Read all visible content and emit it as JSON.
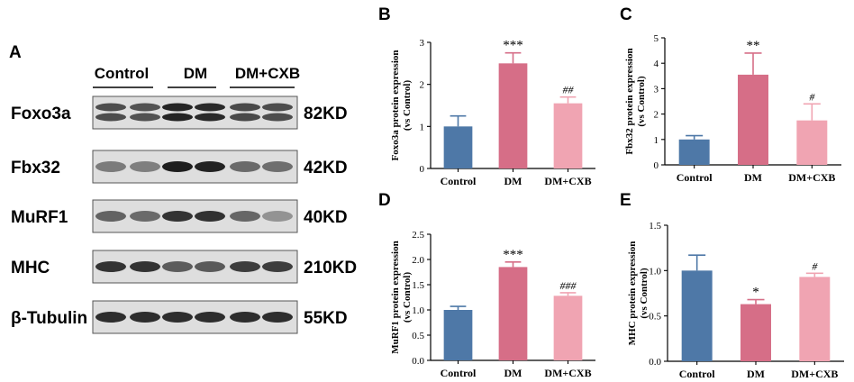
{
  "blot": {
    "panel_letter": "A",
    "groups": [
      "Control",
      "DM",
      "DM+CXB"
    ],
    "rows": [
      {
        "protein": "Foxo3a",
        "kd": "82KD",
        "intensity": [
          0.72,
          0.7,
          0.92,
          0.9,
          0.74,
          0.72
        ],
        "double": true
      },
      {
        "protein": "Fbx32",
        "kd": "42KD",
        "intensity": [
          0.5,
          0.48,
          0.95,
          0.93,
          0.58,
          0.56
        ],
        "double": false
      },
      {
        "protein": "MuRF1",
        "kd": "40KD",
        "intensity": [
          0.62,
          0.58,
          0.85,
          0.86,
          0.6,
          0.38
        ],
        "double": false
      },
      {
        "protein": "MHC",
        "kd": "210KD",
        "intensity": [
          0.85,
          0.85,
          0.65,
          0.66,
          0.8,
          0.8
        ],
        "double": false
      },
      {
        "protein": "β-Tubulin",
        "kd": "55KD",
        "intensity": [
          0.88,
          0.88,
          0.88,
          0.88,
          0.88,
          0.88
        ],
        "double": false
      }
    ]
  },
  "chart_data": [
    {
      "panel": "B",
      "type": "bar",
      "categories": [
        "Control",
        "DM",
        "DM+CXB"
      ],
      "values": [
        1.0,
        2.5,
        1.55
      ],
      "errors": [
        0.25,
        0.25,
        0.15
      ],
      "significance": [
        "",
        "***",
        "##"
      ],
      "ylabel_lines": [
        "Foxo3a protein expression",
        "(vs Control)"
      ],
      "ylim": [
        0,
        3
      ],
      "yticks": [
        0,
        1,
        2,
        3
      ],
      "colors": [
        "#4e78a7",
        "#d66e87",
        "#f0a4b2"
      ]
    },
    {
      "panel": "C",
      "type": "bar",
      "categories": [
        "Control",
        "DM",
        "DM+CXB"
      ],
      "values": [
        1.0,
        3.55,
        1.75
      ],
      "errors": [
        0.15,
        0.85,
        0.65
      ],
      "significance": [
        "",
        "**",
        "#"
      ],
      "ylabel_lines": [
        "Fbx32 protein expression",
        "(vs Control)"
      ],
      "ylim": [
        0,
        5
      ],
      "yticks": [
        0,
        1,
        2,
        3,
        4,
        5
      ],
      "colors": [
        "#4e78a7",
        "#d66e87",
        "#f0a4b2"
      ]
    },
    {
      "panel": "D",
      "type": "bar",
      "categories": [
        "Control",
        "DM",
        "DM+CXB"
      ],
      "values": [
        1.0,
        1.85,
        1.28
      ],
      "errors": [
        0.07,
        0.1,
        0.06
      ],
      "significance": [
        "",
        "***",
        "###"
      ],
      "ylabel_lines": [
        "MuRF1 protein expression",
        "(vs Control)"
      ],
      "ylim": [
        0,
        2.5
      ],
      "yticks": [
        "0.0",
        "0.5",
        "1.0",
        "1.5",
        "2.0",
        "2.5"
      ],
      "colors": [
        "#4e78a7",
        "#d66e87",
        "#f0a4b2"
      ]
    },
    {
      "panel": "E",
      "type": "bar",
      "categories": [
        "Control",
        "DM",
        "DM+CXB"
      ],
      "values": [
        1.0,
        0.63,
        0.93
      ],
      "errors": [
        0.17,
        0.05,
        0.04
      ],
      "significance": [
        "",
        "*",
        "#"
      ],
      "ylabel_lines": [
        "MHC protein expression",
        "(vs Control)"
      ],
      "ylim": [
        0,
        1.5
      ],
      "yticks": [
        "0.0",
        "0.5",
        "1.0",
        "1.5"
      ],
      "colors": [
        "#4e78a7",
        "#d66e87",
        "#f0a4b2"
      ]
    }
  ]
}
